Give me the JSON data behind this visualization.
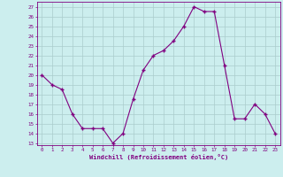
{
  "x": [
    0,
    1,
    2,
    3,
    4,
    5,
    6,
    7,
    8,
    9,
    10,
    11,
    12,
    13,
    14,
    15,
    16,
    17,
    18,
    19,
    20,
    21,
    22,
    23
  ],
  "y": [
    20,
    19,
    18.5,
    16,
    14.5,
    14.5,
    14.5,
    13,
    14,
    17.5,
    20.5,
    22,
    22.5,
    23.5,
    25,
    27,
    26.5,
    26.5,
    21,
    15.5,
    15.5,
    17,
    16,
    14
  ],
  "line_color": "#800080",
  "marker_color": "#800080",
  "bg_color": "#cceeee",
  "grid_color": "#aacccc",
  "xlabel": "Windchill (Refroidissement éolien,°C)",
  "ylabel_ticks": [
    13,
    14,
    15,
    16,
    17,
    18,
    19,
    20,
    21,
    22,
    23,
    24,
    25,
    26,
    27
  ],
  "xlim": [
    -0.5,
    23.5
  ],
  "ylim": [
    12.8,
    27.5
  ],
  "xtick_labels": [
    "0",
    "1",
    "2",
    "3",
    "4",
    "5",
    "6",
    "7",
    "8",
    "9",
    "10",
    "11",
    "12",
    "13",
    "14",
    "15",
    "16",
    "17",
    "18",
    "19",
    "20",
    "21",
    "22",
    "23"
  ]
}
